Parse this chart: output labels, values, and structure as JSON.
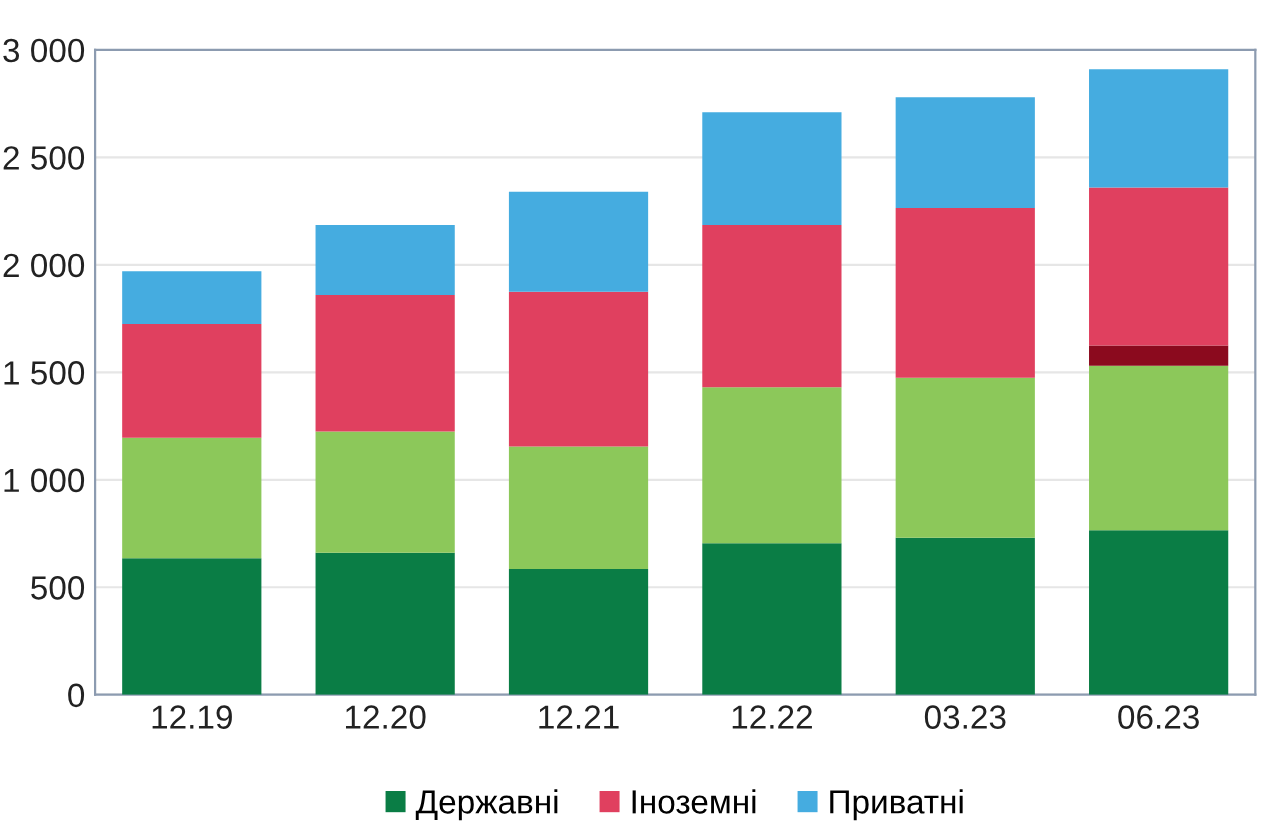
{
  "chart_data": {
    "type": "bar",
    "stacked": true,
    "categories": [
      "12.19",
      "12.20",
      "12.21",
      "12.22",
      "03.23",
      "06.23"
    ],
    "series": [
      {
        "name": "Державні",
        "color": "#0a7d45",
        "values": [
          635,
          660,
          585,
          705,
          730,
          765
        ]
      },
      {
        "color": "#8cc85a",
        "values": [
          560,
          565,
          570,
          725,
          745,
          765
        ]
      },
      {
        "color": "#8b0a1e",
        "values": [
          null,
          null,
          null,
          null,
          null,
          95
        ]
      },
      {
        "name": "Іноземні",
        "color": "#e0405f",
        "values": [
          530,
          635,
          720,
          755,
          790,
          735
        ]
      },
      {
        "name": "Приватні",
        "color": "#45ace0",
        "values": [
          245,
          325,
          465,
          525,
          515,
          550
        ]
      }
    ],
    "ylim": [
      0,
      3000
    ],
    "yticks": [
      0,
      500,
      {
        "value": 1000,
        "label": "1 000"
      },
      {
        "value": 1500,
        "label": "1 500"
      },
      {
        "value": 2000,
        "label": "2 000"
      },
      {
        "value": 2500,
        "label": "2 500"
      },
      {
        "value": 3000,
        "label": "3 000"
      }
    ],
    "grid": "y",
    "legend": "bottom"
  }
}
